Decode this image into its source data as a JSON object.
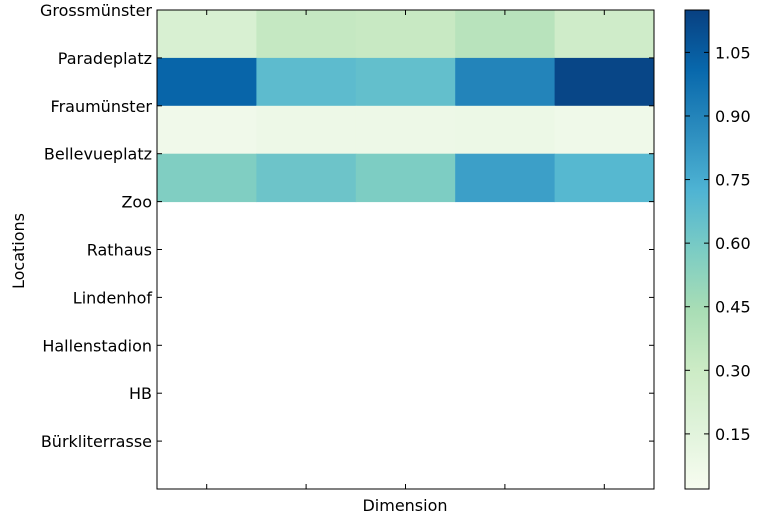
{
  "chart_data": {
    "type": "heatmap",
    "title": "",
    "xlabel": "Dimension",
    "ylabel": "Locations",
    "rows": [
      "Grossmünster",
      "Paradeplatz",
      "Fraumünster",
      "Bellevueplatz",
      "Zoo",
      "Rathaus",
      "Lindenhof",
      "Hallenstadion",
      "HB",
      "Bürkliterrasse"
    ],
    "columns": 5,
    "x_tick_labels": [],
    "values": [
      [
        0.22,
        0.33,
        0.32,
        0.38,
        0.28
      ],
      [
        1.02,
        0.68,
        0.66,
        0.9,
        1.13
      ],
      [
        0.06,
        0.08,
        0.08,
        0.09,
        0.07
      ],
      [
        0.57,
        0.63,
        0.58,
        0.8,
        0.7
      ],
      [
        null,
        null,
        null,
        null,
        null
      ],
      [
        null,
        null,
        null,
        null,
        null
      ],
      [
        null,
        null,
        null,
        null,
        null
      ],
      [
        null,
        null,
        null,
        null,
        null
      ],
      [
        null,
        null,
        null,
        null,
        null
      ],
      [
        null,
        null,
        null,
        null,
        null
      ]
    ],
    "colormap": "GnBu",
    "vmin": 0.02,
    "vmax": 1.15,
    "colorbar_ticks": [
      "0.15",
      "0.30",
      "0.45",
      "0.60",
      "0.75",
      "0.90",
      "1.05"
    ],
    "grid": false,
    "colorbar_position": "right"
  }
}
